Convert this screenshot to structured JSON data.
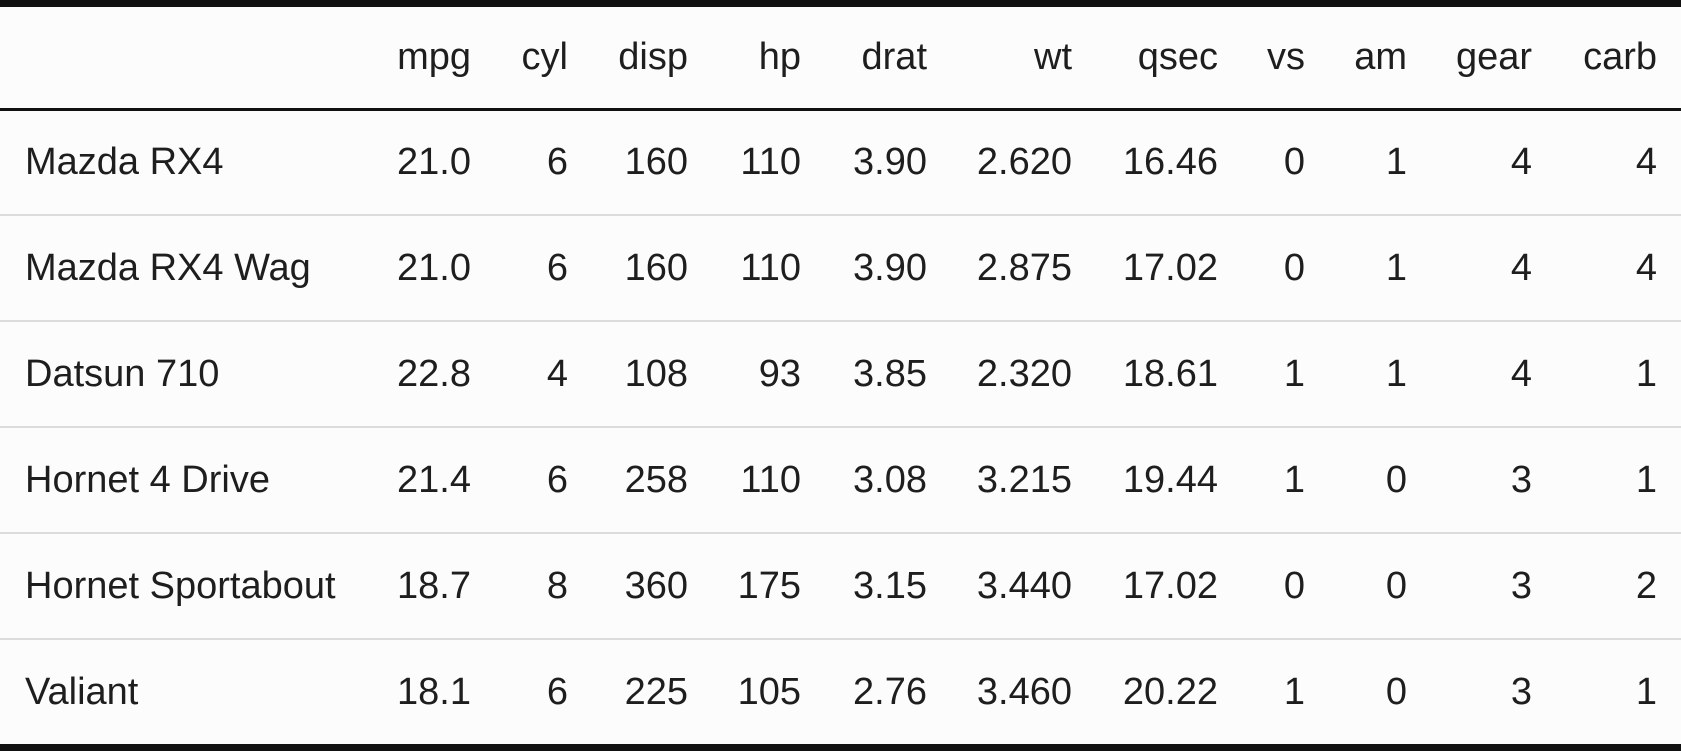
{
  "table": {
    "columns": [
      "",
      "mpg",
      "cyl",
      "disp",
      "hp",
      "drat",
      "wt",
      "qsec",
      "vs",
      "am",
      "gear",
      "carb"
    ],
    "rows": [
      [
        "Mazda RX4",
        "21.0",
        "6",
        "160",
        "110",
        "3.90",
        "2.620",
        "16.46",
        "0",
        "1",
        "4",
        "4"
      ],
      [
        "Mazda RX4 Wag",
        "21.0",
        "6",
        "160",
        "110",
        "3.90",
        "2.875",
        "17.02",
        "0",
        "1",
        "4",
        "4"
      ],
      [
        "Datsun 710",
        "22.8",
        "4",
        "108",
        "93",
        "3.85",
        "2.320",
        "18.61",
        "1",
        "1",
        "4",
        "1"
      ],
      [
        "Hornet 4 Drive",
        "21.4",
        "6",
        "258",
        "110",
        "3.08",
        "3.215",
        "19.44",
        "1",
        "0",
        "3",
        "1"
      ],
      [
        "Hornet Sportabout",
        "18.7",
        "8",
        "360",
        "175",
        "3.15",
        "3.440",
        "17.02",
        "0",
        "0",
        "3",
        "2"
      ],
      [
        "Valiant",
        "18.1",
        "6",
        "225",
        "105",
        "2.76",
        "3.460",
        "20.22",
        "1",
        "0",
        "3",
        "1"
      ]
    ]
  },
  "colors": {
    "text": "#1e1e1e",
    "rule": "#111111",
    "row_divider": "#dcdcdc",
    "background": "#fcfcfc"
  }
}
